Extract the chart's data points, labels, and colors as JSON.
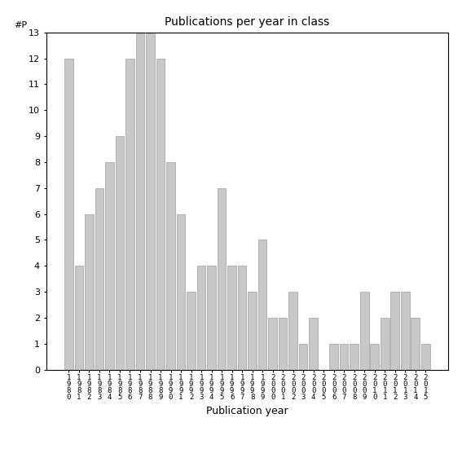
{
  "title": "Publications per year in class",
  "xlabel": "Publication year",
  "ylabel": "#P",
  "bar_color": "#c8c8c8",
  "bar_edgecolor": "#a0a0a0",
  "years": [
    1980,
    1981,
    1982,
    1983,
    1984,
    1985,
    1986,
    1987,
    1988,
    1989,
    1990,
    1991,
    1992,
    1993,
    1994,
    1995,
    1996,
    1997,
    1998,
    1999,
    2000,
    2001,
    2002,
    2003,
    2004,
    2005,
    2006,
    2007,
    2008,
    2009,
    2010,
    2011,
    2012,
    2013,
    2014,
    2015
  ],
  "values": [
    12,
    4,
    6,
    7,
    8,
    9,
    12,
    13,
    13,
    12,
    8,
    6,
    3,
    4,
    4,
    7,
    4,
    4,
    3,
    5,
    2,
    2,
    3,
    1,
    2,
    0,
    1,
    1,
    1,
    3,
    1,
    2,
    3,
    3,
    2,
    1
  ],
  "ylim": [
    0,
    13
  ],
  "yticks": [
    0,
    1,
    2,
    3,
    4,
    5,
    6,
    7,
    8,
    9,
    10,
    11,
    12,
    13
  ],
  "background_color": "#ffffff",
  "title_fontsize": 10,
  "tick_fontsize": 8,
  "label_fontsize": 9
}
